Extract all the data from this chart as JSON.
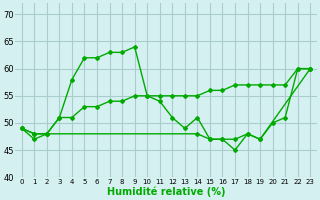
{
  "xlabel": "Humidité relative (%)",
  "bg_color": "#d5f0f0",
  "grid_color": "#aacccc",
  "line_color": "#00aa00",
  "xlim": [
    -0.5,
    23.5
  ],
  "ylim": [
    40,
    72
  ],
  "yticks": [
    40,
    45,
    50,
    55,
    60,
    65,
    70
  ],
  "xtick_labels": [
    "0",
    "1",
    "2",
    "3",
    "4",
    "5",
    "6",
    "7",
    "8",
    "9",
    "10",
    "11",
    "12",
    "13",
    "14",
    "15",
    "16",
    "17",
    "18",
    "19",
    "20",
    "21",
    "22",
    "23"
  ],
  "series1_x": [
    0,
    1,
    2,
    3,
    4,
    5,
    6,
    7,
    8,
    9,
    10,
    11,
    12,
    13,
    14,
    15,
    16,
    17,
    18,
    19,
    20,
    21,
    22,
    23
  ],
  "series1_y": [
    49,
    47,
    48,
    51,
    58,
    62,
    62,
    63,
    63,
    64,
    55,
    54,
    51,
    49,
    51,
    47,
    47,
    45,
    48,
    47,
    50,
    51,
    60,
    60
  ],
  "series2_x": [
    0,
    1,
    2,
    14,
    15,
    16,
    17,
    18,
    19,
    23
  ],
  "series2_y": [
    49,
    48,
    48,
    48,
    47,
    47,
    47,
    48,
    47,
    60
  ],
  "series3_x": [
    0,
    1,
    2,
    3,
    4,
    5,
    6,
    7,
    8,
    9,
    10,
    11,
    12,
    13,
    14,
    15,
    16,
    17,
    18,
    19,
    20,
    21,
    22,
    23
  ],
  "series3_y": [
    49,
    48,
    48,
    51,
    51,
    53,
    53,
    54,
    54,
    55,
    55,
    55,
    55,
    55,
    55,
    56,
    56,
    57,
    57,
    57,
    57,
    57,
    60,
    60
  ]
}
